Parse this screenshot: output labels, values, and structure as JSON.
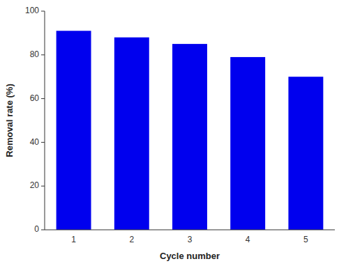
{
  "chart_data": {
    "type": "bar",
    "categories": [
      "1",
      "2",
      "3",
      "4",
      "5"
    ],
    "values": [
      91,
      88,
      85,
      79,
      70
    ],
    "color": "#0000EE",
    "xlabel": "Cycle number",
    "ylabel": "Removal rate (%)",
    "ylim": [
      0,
      100
    ],
    "yticks": [
      0,
      20,
      40,
      60,
      80,
      100
    ],
    "grid": false
  }
}
